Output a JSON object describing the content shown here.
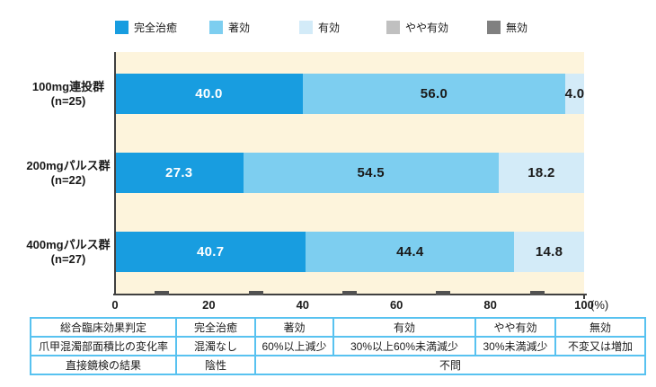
{
  "chart_data": {
    "type": "stacked_bar_horizontal",
    "orientation": "horizontal",
    "unit_label": "(%)",
    "xlim": [
      0,
      100
    ],
    "xticks": [
      0,
      20,
      40,
      60,
      80,
      100
    ],
    "minor_ticks": [
      10,
      30,
      50,
      70,
      90
    ],
    "grid": false,
    "legend_position": "top",
    "plot_bg": "#FDF4DC",
    "axis_color": "#404040",
    "categories": [
      {
        "label": "100mg連投群",
        "sublabel": "(n=25)"
      },
      {
        "label": "200mgパルス群",
        "sublabel": "(n=22)"
      },
      {
        "label": "400mgパルス群",
        "sublabel": "(n=27)"
      }
    ],
    "series": [
      {
        "name": "完全治癒",
        "color": "#189DE0",
        "text_color": "#ffffff",
        "values": [
          40.0,
          27.3,
          40.7
        ],
        "value_labels": [
          "40.0",
          "27.3",
          "40.7"
        ]
      },
      {
        "name": "著効",
        "color": "#7DCEF0",
        "text_color": "#1a1a1a",
        "values": [
          56.0,
          54.5,
          44.4
        ],
        "value_labels": [
          "56.0",
          "54.5",
          "44.4"
        ]
      },
      {
        "name": "有効",
        "color": "#D3EBF8",
        "text_color": "#1a1a1a",
        "values": [
          4.0,
          18.2,
          14.8
        ],
        "value_labels": [
          "4.0",
          "18.2",
          "14.8"
        ]
      },
      {
        "name": "やや有効",
        "color": "#C0C0C0",
        "text_color": "#1a1a1a",
        "values": [
          0,
          0,
          0
        ],
        "value_labels": [
          "",
          "",
          ""
        ]
      },
      {
        "name": "無効",
        "color": "#808080",
        "text_color": "#ffffff",
        "values": [
          0,
          0,
          0
        ],
        "value_labels": [
          "",
          "",
          ""
        ]
      }
    ]
  },
  "table": {
    "border_color": "#58C2F0",
    "rows": [
      {
        "cells": [
          {
            "text": "総合臨床効果判定"
          },
          {
            "text": "完全治癒"
          },
          {
            "text": "著効"
          },
          {
            "text": "有効"
          },
          {
            "text": "やや有効"
          },
          {
            "text": "無効"
          }
        ]
      },
      {
        "cells": [
          {
            "text": "爪甲混濁部面積比の変化率"
          },
          {
            "text": "混濁なし"
          },
          {
            "text": "60%以上減少"
          },
          {
            "text": "30%以上60%未満減少"
          },
          {
            "text": "30%未満減少"
          },
          {
            "text": "不変又は増加"
          }
        ]
      },
      {
        "cells": [
          {
            "text": "直接鏡検の結果"
          },
          {
            "text": "陰性"
          },
          {
            "text": "不問",
            "colspan": 4
          }
        ]
      }
    ]
  }
}
